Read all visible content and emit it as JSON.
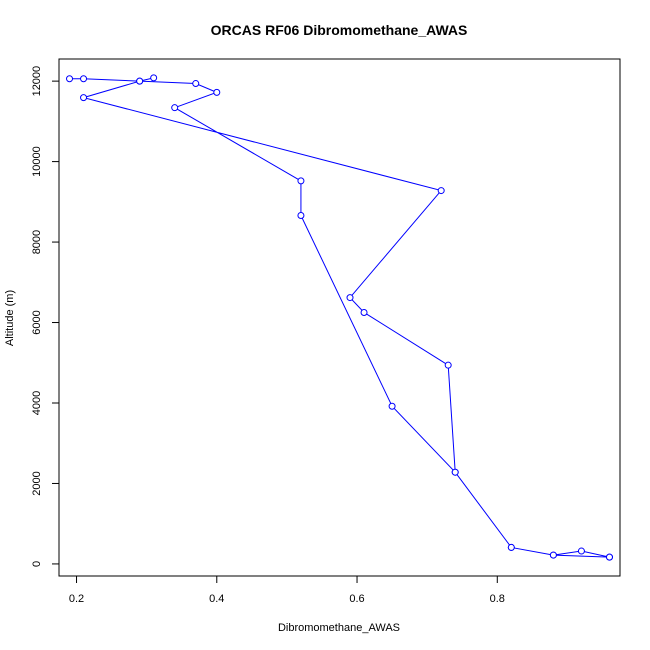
{
  "chart_data": {
    "type": "line",
    "title": "ORCAS RF06 Dibromomethane_AWAS",
    "xlabel": "Dibromomethane_AWAS",
    "ylabel": "Altitude (m)",
    "xlim": [
      0.175,
      0.975
    ],
    "ylim": [
      -300,
      12550
    ],
    "xticks": [
      0.2,
      0.4,
      0.6,
      0.8
    ],
    "xtick_labels": [
      "0.2",
      "0.4",
      "0.6",
      "0.8"
    ],
    "yticks": [
      0,
      2000,
      4000,
      6000,
      8000,
      10000,
      12000
    ],
    "ytick_labels": [
      "0",
      "2000",
      "4000",
      "6000",
      "8000",
      "10000",
      "12000"
    ],
    "grid": false,
    "series": [
      {
        "color": "#0000ff",
        "marker": "open-circle",
        "points": [
          {
            "x": 0.96,
            "y": 170
          },
          {
            "x": 0.92,
            "y": 320
          },
          {
            "x": 0.88,
            "y": 220
          },
          {
            "x": 0.82,
            "y": 410
          },
          {
            "x": 0.74,
            "y": 2280
          },
          {
            "x": 0.73,
            "y": 4940
          },
          {
            "x": 0.61,
            "y": 6250
          },
          {
            "x": 0.59,
            "y": 6620
          },
          {
            "x": 0.72,
            "y": 9280
          },
          {
            "x": 0.21,
            "y": 11590
          },
          {
            "x": 0.29,
            "y": 12000
          },
          {
            "x": 0.37,
            "y": 11940
          },
          {
            "x": 0.4,
            "y": 11720
          },
          {
            "x": 0.34,
            "y": 11340
          },
          {
            "x": 0.52,
            "y": 9520
          },
          {
            "x": 0.52,
            "y": 8660
          },
          {
            "x": 0.65,
            "y": 3920
          },
          {
            "x": 0.74,
            "y": 2280
          },
          {
            "x": 0.82,
            "y": 410
          },
          {
            "x": 0.88,
            "y": 220
          },
          {
            "x": 0.96,
            "y": 170
          }
        ],
        "extra_points": [
          {
            "x": 0.19,
            "y": 12060
          },
          {
            "x": 0.21,
            "y": 12060
          },
          {
            "x": 0.29,
            "y": 12000
          },
          {
            "x": 0.31,
            "y": 12080
          }
        ]
      }
    ]
  }
}
